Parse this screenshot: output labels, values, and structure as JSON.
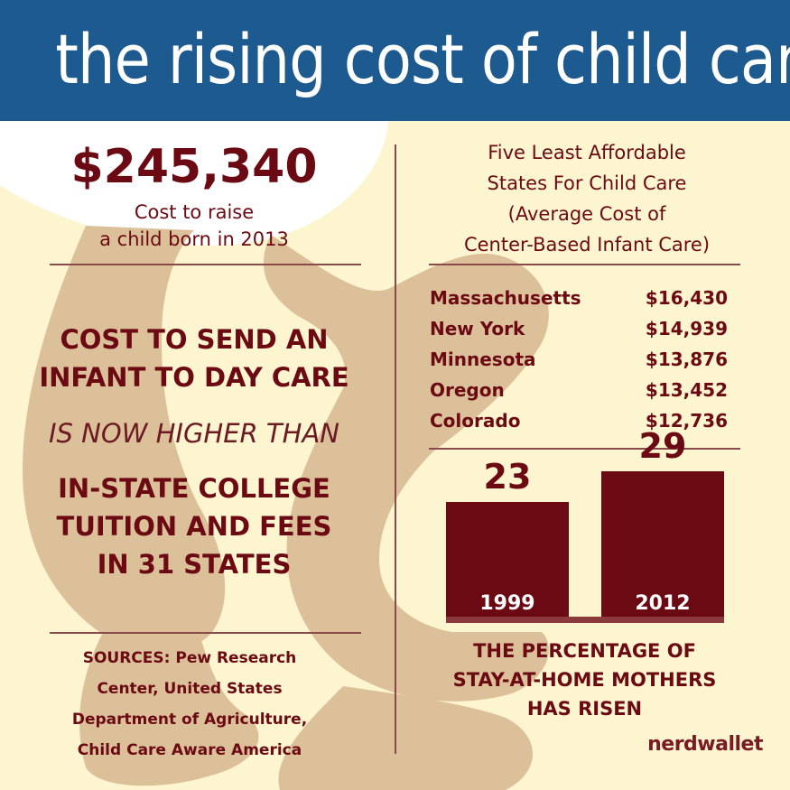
{
  "header": {
    "title": "the rising cost of child care"
  },
  "left": {
    "big_cost": "$245,340",
    "cost_sub_line1": "Cost to raise",
    "cost_sub_line2": "a child born in 2013",
    "daycare_line1": "COST TO SEND AN",
    "daycare_line2": "INFANT TO DAY CARE",
    "higher_than": "IS NOW HIGHER THAN",
    "tuition_line1": "IN-STATE COLLEGE",
    "tuition_line2": "TUITION AND FEES",
    "tuition_line3": "IN 31 STATES",
    "sources_line1": "SOURCES: Pew Research",
    "sources_line2": "Center, United States",
    "sources_line3": "Department of Agriculture,",
    "sources_line4": "Child Care Aware America"
  },
  "right": {
    "title_line1": "Five Least Affordable",
    "title_line2": "States For Child Care",
    "title_line3": "(Average Cost of",
    "title_line4": "Center-Based Infant Care)",
    "states": [
      {
        "name": "Massachusetts",
        "cost": "$16,430"
      },
      {
        "name": "New York",
        "cost": "$14,939"
      },
      {
        "name": "Minnesota",
        "cost": "$13,876"
      },
      {
        "name": "Oregon",
        "cost": "$13,452"
      },
      {
        "name": "Colorado",
        "cost": "$12,736"
      }
    ],
    "caption_line1": "THE PERCENTAGE OF",
    "caption_line2": "STAY-AT-HOME MOTHERS",
    "caption_line3": "HAS RISEN"
  },
  "chart_data": {
    "type": "bar",
    "categories": [
      "1999",
      "2012"
    ],
    "values": [
      23,
      29
    ],
    "data_labels": [
      "23",
      "29"
    ],
    "title": "",
    "xlabel": "",
    "ylabel": "",
    "ylim": [
      0,
      36
    ]
  },
  "brand": {
    "logo": "nerdwallet"
  },
  "colors": {
    "header": "#1c5a8f",
    "background": "#fdf5cf",
    "accent": "#6b0a13",
    "skin": "#dcc09a"
  }
}
